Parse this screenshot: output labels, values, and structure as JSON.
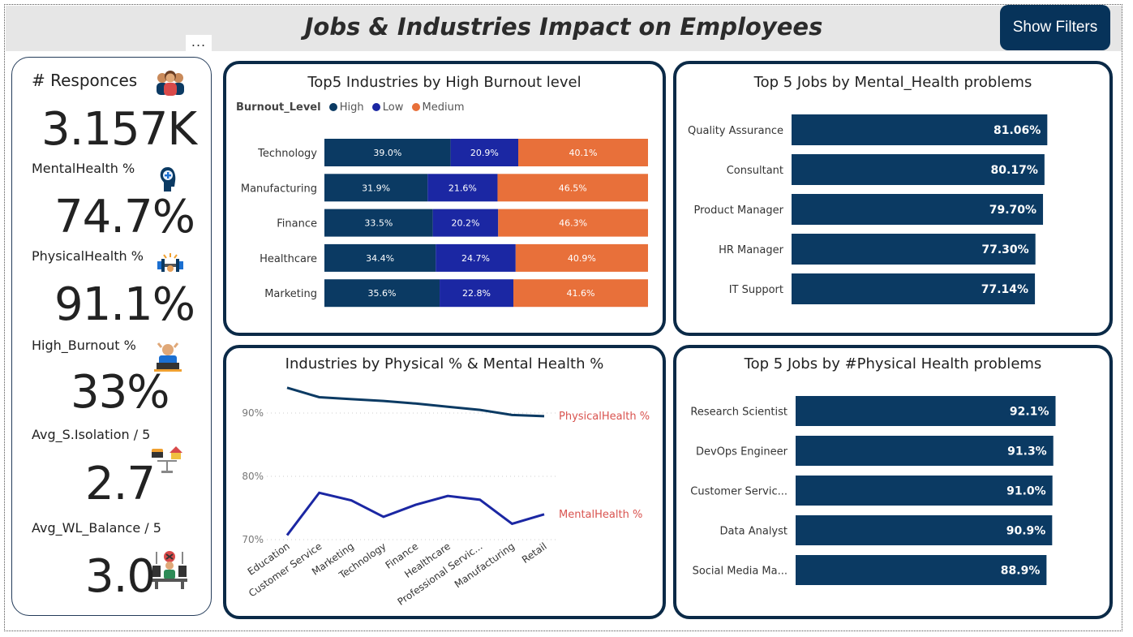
{
  "header": {
    "title": "Jobs & Industries Impact on Employees",
    "show_filters_label": "Show Filters",
    "more_options": "...",
    "background": "#e6e6e6"
  },
  "kpis": {
    "responses_label": "# Responces",
    "responses_value": "3.157K",
    "mental_label": "MentalHealth %",
    "mental_value": "74.7%",
    "physical_label": "PhysicalHealth %",
    "physical_value": "91.1%",
    "burnout_label": "High_Burnout %",
    "burnout_value": "33%",
    "isolation_label": "Avg_S.Isolation / 5",
    "isolation_value": "2.7",
    "wlb_label": "Avg_WL_Balance / 5",
    "wlb_value": "3.0",
    "icons": [
      "people-group-icon",
      "mental-health-head-icon",
      "dumbbell-icon",
      "stressed-worker-icon",
      "isolation-icon",
      "work-life-balance-icon"
    ]
  },
  "colors": {
    "high": "#0b3a63",
    "low": "#1b27a3",
    "medium": "#e8703a",
    "bar": "#0b3a63",
    "physical_line": "#0b3a63",
    "mental_line": "#1b27a3",
    "line_label": "#d9534f",
    "border": "#0b2a47"
  },
  "chart_data": [
    {
      "type": "bar",
      "stacked": true,
      "orientation": "horizontal",
      "percent": true,
      "title": "Top5 Industries by High Burnout level",
      "legend_title": "Burnout_Level",
      "legend_position": "top-left",
      "categories": [
        "Technology",
        "Manufacturing",
        "Finance",
        "Healthcare",
        "Marketing"
      ],
      "series": [
        {
          "name": "High",
          "values": [
            39.0,
            31.9,
            33.5,
            34.4,
            35.6
          ],
          "labels": [
            "39.0%",
            "31.9%",
            "33.5%",
            "34.4%",
            "35.6%"
          ]
        },
        {
          "name": "Low",
          "values": [
            20.9,
            21.6,
            20.2,
            24.7,
            22.8
          ],
          "labels": [
            "20.9%",
            "21.6%",
            "20.2%",
            "24.7%",
            "22.8%"
          ]
        },
        {
          "name": "Medium",
          "values": [
            40.1,
            46.5,
            46.3,
            40.9,
            41.6
          ],
          "labels": [
            "40.1%",
            "46.5%",
            "46.3%",
            "40.9%",
            "41.6%"
          ]
        }
      ]
    },
    {
      "type": "bar",
      "orientation": "horizontal",
      "title": "Top 5 Jobs by Mental_Health problems",
      "categories": [
        "Quality Assurance",
        "Consultant",
        "Product Manager",
        "HR Manager",
        "IT Support"
      ],
      "values": [
        81.06,
        80.17,
        79.7,
        77.3,
        77.14
      ],
      "labels": [
        "81.06%",
        "80.17%",
        "79.70%",
        "77.30%",
        "77.14%"
      ]
    },
    {
      "type": "line",
      "title": "Industries by Physical % & Mental Health %",
      "categories": [
        "Education",
        "Customer Service",
        "Marketing",
        "Technology",
        "Finance",
        "Healthcare",
        "Professional Servic...",
        "Manufacturing",
        "Retail"
      ],
      "ylim": [
        70,
        95
      ],
      "yticks": [
        70,
        80,
        90
      ],
      "ytick_labels": [
        "70%",
        "80%",
        "90%"
      ],
      "series": [
        {
          "name": "PhysicalHealth %",
          "values": [
            94.0,
            92.5,
            92.2,
            91.9,
            91.5,
            91.0,
            90.5,
            89.7,
            89.5
          ]
        },
        {
          "name": "MentalHealth %",
          "values": [
            70.7,
            77.4,
            76.2,
            73.6,
            75.5,
            76.9,
            76.3,
            72.5,
            74.0
          ]
        }
      ]
    },
    {
      "type": "bar",
      "orientation": "horizontal",
      "title": "Top 5 Jobs by #Physical Health problems",
      "categories": [
        "Research Scientist",
        "DevOps Engineer",
        "Customer Servic...",
        "Data Analyst",
        "Social Media Ma..."
      ],
      "values": [
        92.1,
        91.3,
        91.0,
        90.9,
        88.9
      ],
      "labels": [
        "92.1%",
        "91.3%",
        "91.0%",
        "90.9%",
        "88.9%"
      ]
    }
  ]
}
